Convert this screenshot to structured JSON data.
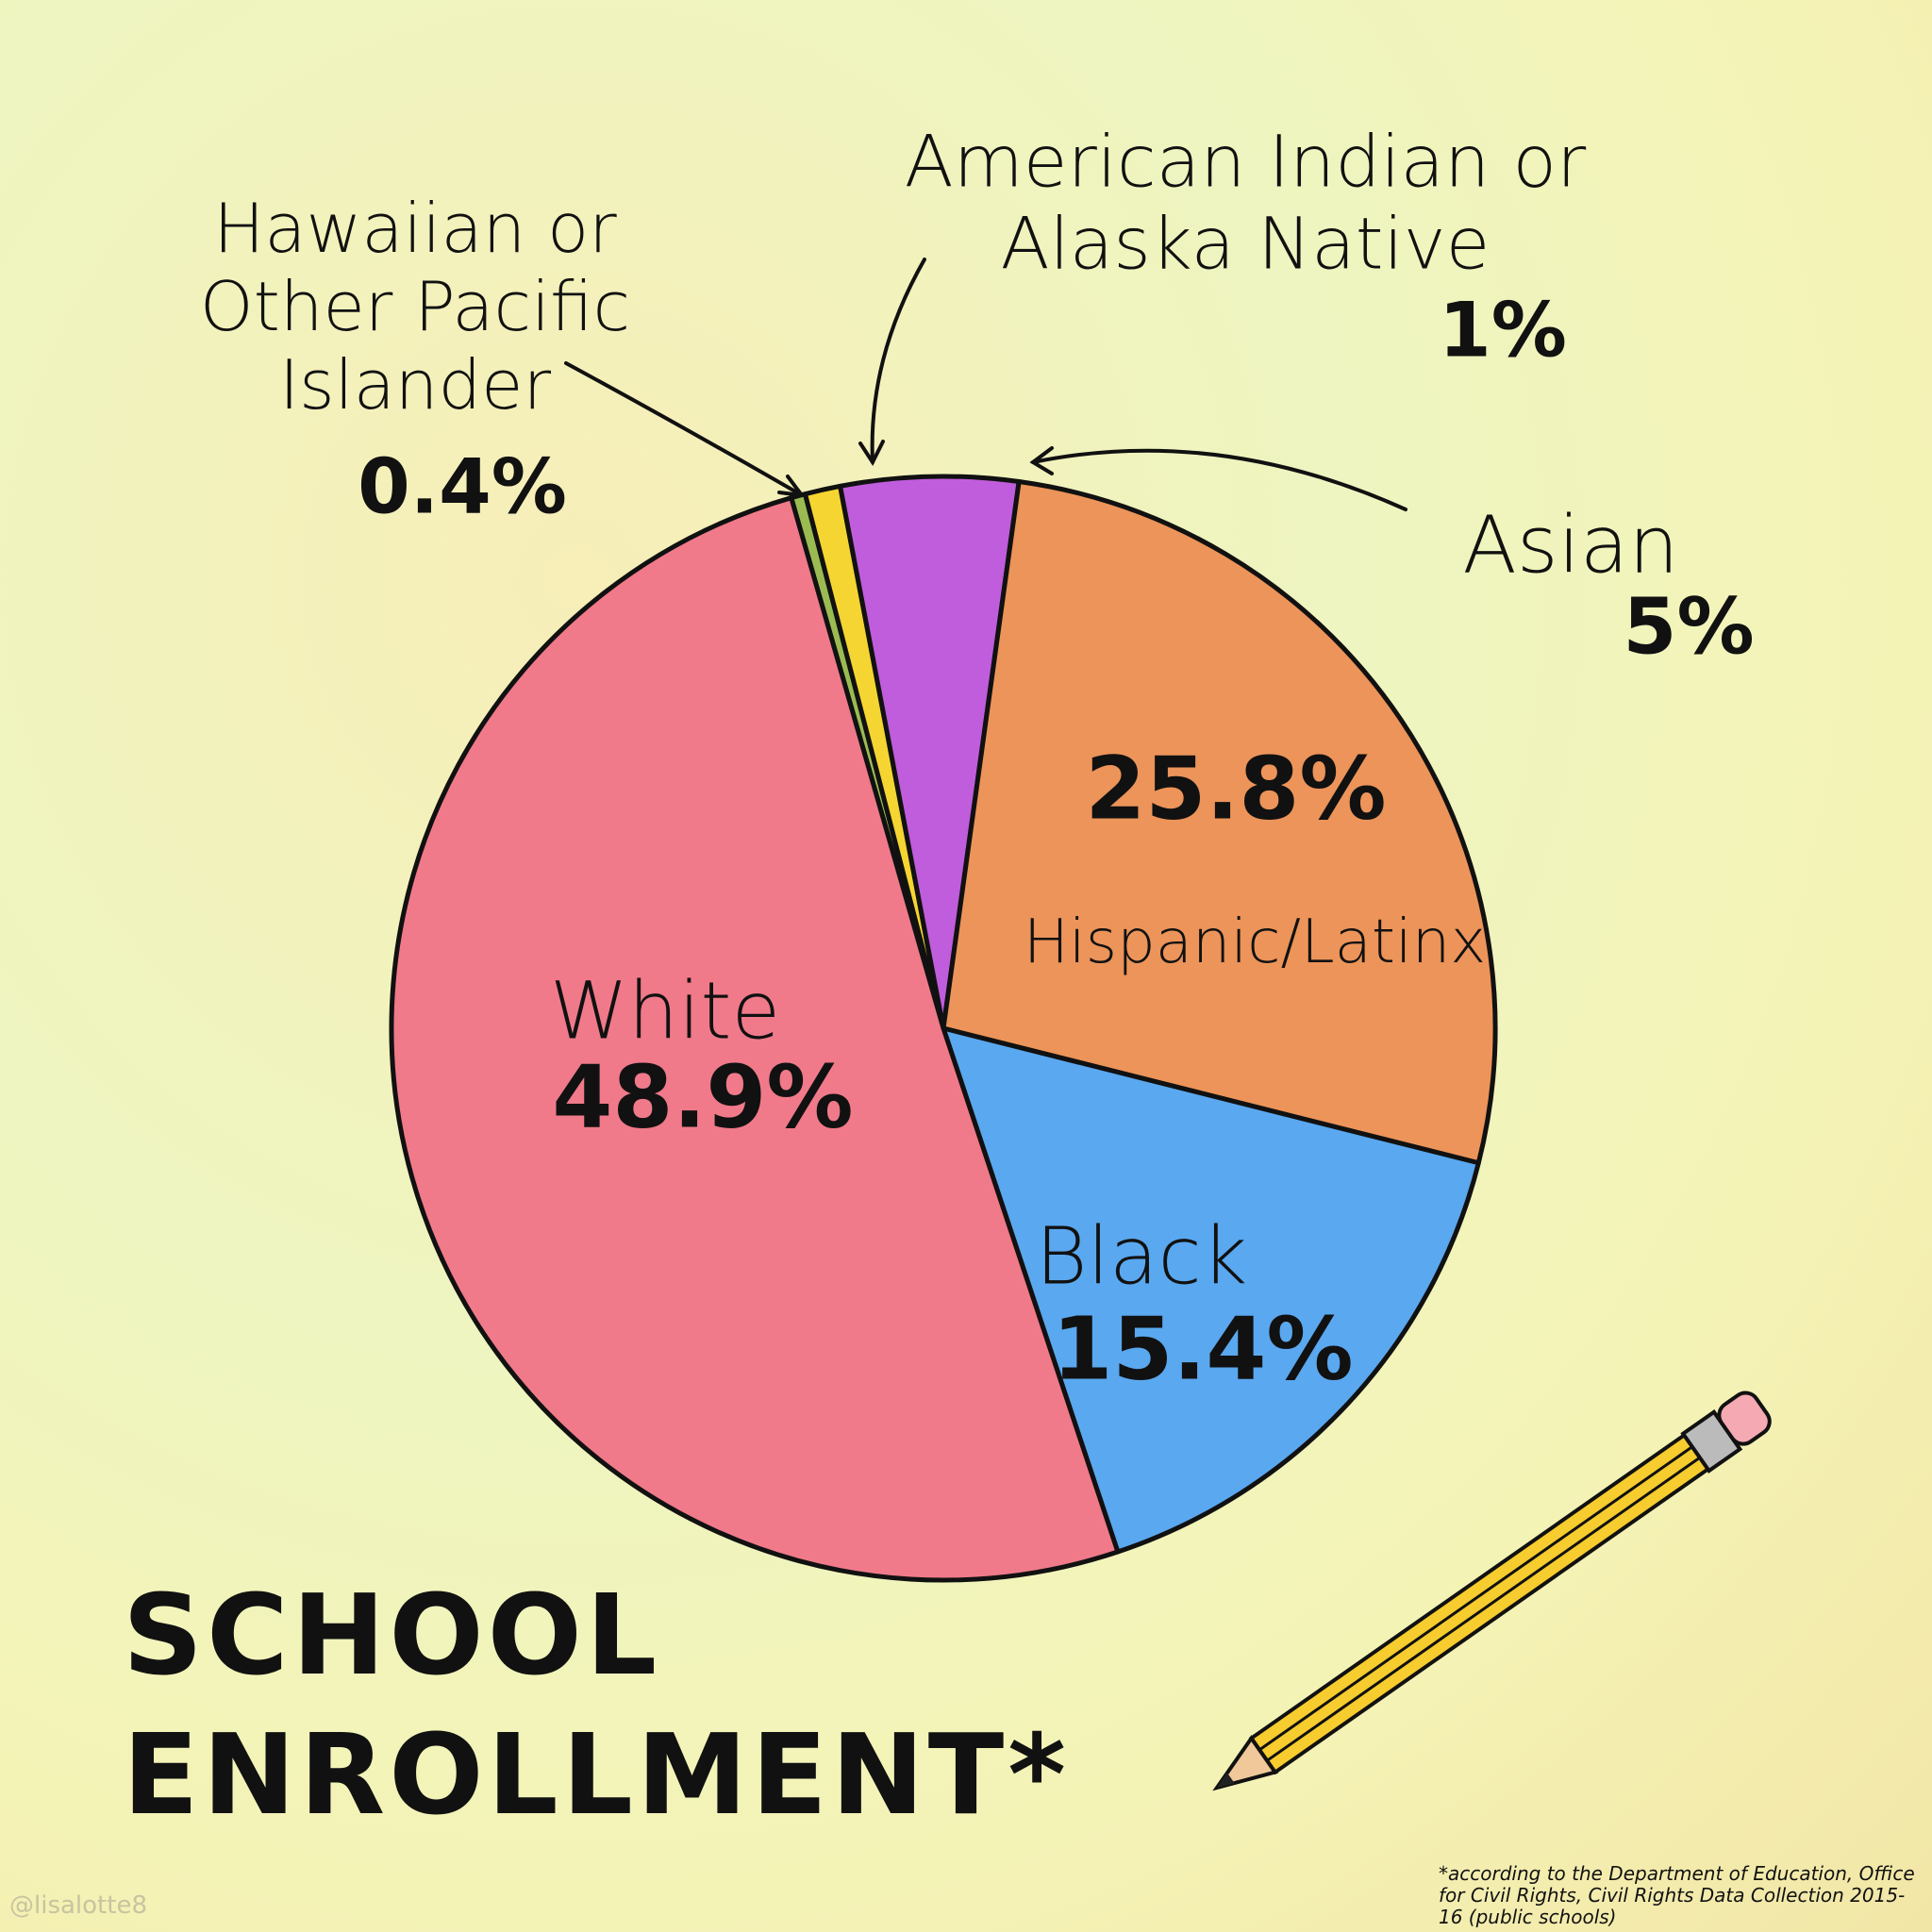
{
  "chart_data": {
    "type": "pie",
    "title": "SCHOOL ENROLLMENT*",
    "categories": [
      "Hawaiian or Other Pacific Islander",
      "American Indian or Alaska Native",
      "Asian",
      "Hispanic/Latinx",
      "Black",
      "White"
    ],
    "values": [
      0.4,
      1,
      5,
      25.8,
      15.4,
      48.9
    ],
    "value_labels": [
      "0.4%",
      "1%",
      "5%",
      "25.8%",
      "15.4%",
      "48.9%"
    ],
    "colors": [
      "#9bbb52",
      "#f5d531",
      "#c05ddc",
      "#ec9459",
      "#5aa8ef",
      "#f07a8a"
    ],
    "footnote": "*according to the Department of Education, Office for Civil Rights, Civil Rights Data Collection 2015-16 (public schools)",
    "credit": "@lisalotte8"
  }
}
